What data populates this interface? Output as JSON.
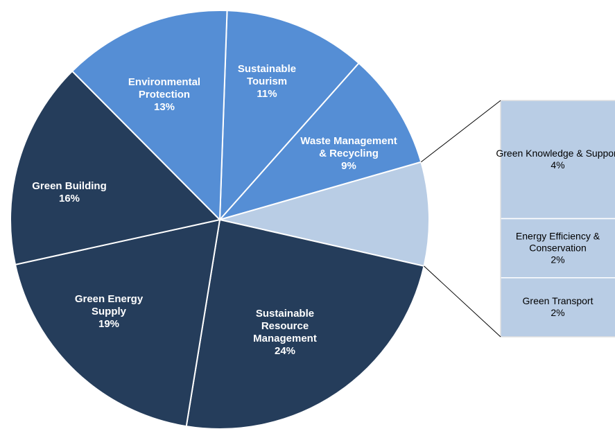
{
  "chart_data": {
    "type": "pie-of-bar",
    "categories": [
      "Sustainable Tourism",
      "Waste Management & Recycling",
      null,
      "Sustainable Resource Management",
      "Green Energy Supply",
      "Green Building",
      "Environmental Protection"
    ],
    "values": [
      11,
      9,
      8,
      24,
      19,
      16,
      13
    ],
    "value_labels": [
      "11%",
      "9%",
      null,
      "24%",
      "19%",
      "16%",
      "13%"
    ],
    "colors": [
      "#558ed5",
      "#558ed5",
      "#b9cde5",
      "#253d5b",
      "#253d5b",
      "#253d5b",
      "#558ed5"
    ],
    "bar": {
      "categories": [
        "Green Knowledge & Support",
        "Energy Efficiency & Conservation",
        "Green Transport"
      ],
      "values": [
        4,
        2,
        2
      ],
      "value_labels": [
        "4%",
        "2%",
        "2%"
      ],
      "color": "#b9cde5"
    }
  }
}
